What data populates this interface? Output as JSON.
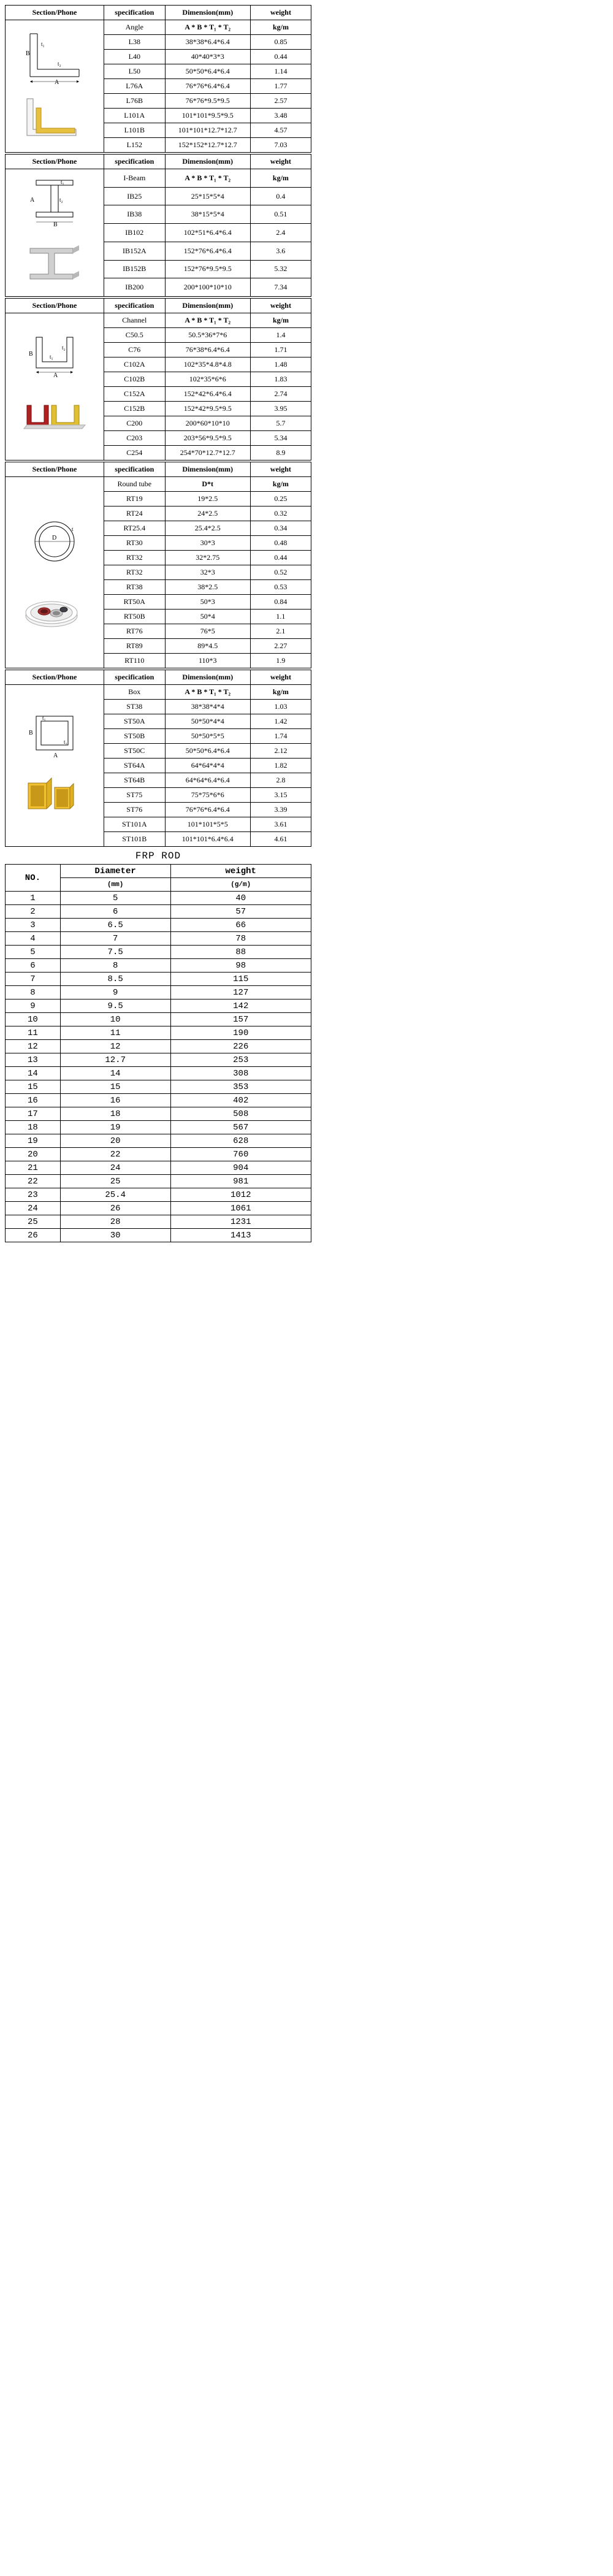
{
  "common_headers": {
    "section": "Section/Phone",
    "spec": "specification",
    "dim": "Dimension(mm)",
    "wt": "weight"
  },
  "profiles": [
    {
      "key": "angle",
      "header_spec": "Angle",
      "header_dim": "A * B * T₁ * T₂",
      "header_wt": "kg/m",
      "rows": [
        {
          "spec": "L38",
          "dim": "38*38*6.4*6.4",
          "wt": "0.85"
        },
        {
          "spec": "L40",
          "dim": "40*40*3*3",
          "wt": "0.44"
        },
        {
          "spec": "L50",
          "dim": "50*50*6.4*6.4",
          "wt": "1.14"
        },
        {
          "spec": "L76A",
          "dim": "76*76*6.4*6.4",
          "wt": "1.77"
        },
        {
          "spec": "L76B",
          "dim": "76*76*9.5*9.5",
          "wt": "2.57"
        },
        {
          "spec": "L101A",
          "dim": "101*101*9.5*9.5",
          "wt": "3.48"
        },
        {
          "spec": "L101B",
          "dim": "101*101*12.7*12.7",
          "wt": "4.57"
        },
        {
          "spec": "L152",
          "dim": "152*152*12.7*12.7",
          "wt": "7.03"
        }
      ]
    },
    {
      "key": "ibeam",
      "header_spec": "I-Beam",
      "header_dim": "A * B * T₁ * T₂",
      "header_wt": "kg/m",
      "rows": [
        {
          "spec": "IB25",
          "dim": "25*15*5*4",
          "wt": "0.4"
        },
        {
          "spec": "IB38",
          "dim": "38*15*5*4",
          "wt": "0.51"
        },
        {
          "spec": "IB102",
          "dim": "102*51*6.4*6.4",
          "wt": "2.4"
        },
        {
          "spec": "IB152A",
          "dim": "152*76*6.4*6.4",
          "wt": "3.6"
        },
        {
          "spec": "IB152B",
          "dim": "152*76*9.5*9.5",
          "wt": "5.32"
        },
        {
          "spec": "IB200",
          "dim": "200*100*10*10",
          "wt": "7.34"
        }
      ]
    },
    {
      "key": "channel",
      "header_spec": "Channel",
      "header_dim": "A * B * T₁ * T₂",
      "header_wt": "kg/m",
      "rows": [
        {
          "spec": "C50.5",
          "dim": "50.5*36*7*6",
          "wt": "1.4"
        },
        {
          "spec": "C76",
          "dim": "76*38*6.4*6.4",
          "wt": "1.71"
        },
        {
          "spec": "C102A",
          "dim": "102*35*4.8*4.8",
          "wt": "1.48"
        },
        {
          "spec": "C102B",
          "dim": "102*35*6*6",
          "wt": "1.83"
        },
        {
          "spec": "C152A",
          "dim": "152*42*6.4*6.4",
          "wt": "2.74"
        },
        {
          "spec": "C152B",
          "dim": "152*42*9.5*9.5",
          "wt": "3.95"
        },
        {
          "spec": "C200",
          "dim": "200*60*10*10",
          "wt": "5.7"
        },
        {
          "spec": "C203",
          "dim": "203*56*9.5*9.5",
          "wt": "5.34"
        },
        {
          "spec": "C254",
          "dim": "254*70*12.7*12.7",
          "wt": "8.9"
        }
      ]
    },
    {
      "key": "roundtube",
      "header_spec": "Round tube",
      "header_dim": "D*t",
      "header_wt": "kg/m",
      "rows": [
        {
          "spec": "RT19",
          "dim": "19*2.5",
          "wt": "0.25"
        },
        {
          "spec": "RT24",
          "dim": "24*2.5",
          "wt": "0.32"
        },
        {
          "spec": "RT25.4",
          "dim": "25.4*2.5",
          "wt": "0.34"
        },
        {
          "spec": "RT30",
          "dim": "30*3",
          "wt": "0.48"
        },
        {
          "spec": "RT32",
          "dim": "32*2.75",
          "wt": "0.44"
        },
        {
          "spec": "RT32",
          "dim": "32*3",
          "wt": "0.52"
        },
        {
          "spec": "RT38",
          "dim": "38*2.5",
          "wt": "0.53"
        },
        {
          "spec": "RT50A",
          "dim": "50*3",
          "wt": "0.84"
        },
        {
          "spec": "RT50B",
          "dim": "50*4",
          "wt": "1.1"
        },
        {
          "spec": "RT76",
          "dim": "76*5",
          "wt": "2.1"
        },
        {
          "spec": "RT89",
          "dim": "89*4.5",
          "wt": "2.27"
        },
        {
          "spec": "RT110",
          "dim": "110*3",
          "wt": "1.9"
        }
      ]
    },
    {
      "key": "box",
      "header_spec": "Box",
      "header_dim": "A * B * T₁ * T₂",
      "header_wt": "kg/m",
      "rows": [
        {
          "spec": "ST38",
          "dim": "38*38*4*4",
          "wt": "1.03"
        },
        {
          "spec": "ST50A",
          "dim": "50*50*4*4",
          "wt": "1.42"
        },
        {
          "spec": "ST50B",
          "dim": "50*50*5*5",
          "wt": "1.74"
        },
        {
          "spec": "ST50C",
          "dim": "50*50*6.4*6.4",
          "wt": "2.12"
        },
        {
          "spec": "ST64A",
          "dim": "64*64*4*4",
          "wt": "1.82"
        },
        {
          "spec": "ST64B",
          "dim": "64*64*6.4*6.4",
          "wt": "2.8"
        },
        {
          "spec": "ST75",
          "dim": "75*75*6*6",
          "wt": "3.15"
        },
        {
          "spec": "ST76",
          "dim": "76*76*6.4*6.4",
          "wt": "3.39"
        },
        {
          "spec": "ST101A",
          "dim": "101*101*5*5",
          "wt": "3.61"
        },
        {
          "spec": "ST101B",
          "dim": "101*101*6.4*6.4",
          "wt": "4.61"
        }
      ]
    }
  ],
  "rod": {
    "title": "FRP ROD",
    "headers": {
      "no": "NO.",
      "diam": "Diameter",
      "diam_unit": "(mm)",
      "wt": "weight",
      "wt_unit": "(g/m)"
    },
    "col_widths": {
      "no": 90,
      "diam": 180,
      "wt": 230
    },
    "rows": [
      {
        "no": "1",
        "diam": "5",
        "wt": "40"
      },
      {
        "no": "2",
        "diam": "6",
        "wt": "57"
      },
      {
        "no": "3",
        "diam": "6.5",
        "wt": "66"
      },
      {
        "no": "4",
        "diam": "7",
        "wt": "78"
      },
      {
        "no": "5",
        "diam": "7.5",
        "wt": "88"
      },
      {
        "no": "6",
        "diam": "8",
        "wt": "98"
      },
      {
        "no": "7",
        "diam": "8.5",
        "wt": "115"
      },
      {
        "no": "8",
        "diam": "9",
        "wt": "127"
      },
      {
        "no": "9",
        "diam": "9.5",
        "wt": "142"
      },
      {
        "no": "10",
        "diam": "10",
        "wt": "157"
      },
      {
        "no": "11",
        "diam": "11",
        "wt": "190"
      },
      {
        "no": "12",
        "diam": "12",
        "wt": "226"
      },
      {
        "no": "13",
        "diam": "12.7",
        "wt": "253"
      },
      {
        "no": "14",
        "diam": "14",
        "wt": "308"
      },
      {
        "no": "15",
        "diam": "15",
        "wt": "353"
      },
      {
        "no": "16",
        "diam": "16",
        "wt": "402"
      },
      {
        "no": "17",
        "diam": "18",
        "wt": "508"
      },
      {
        "no": "18",
        "diam": "19",
        "wt": "567"
      },
      {
        "no": "19",
        "diam": "20",
        "wt": "628"
      },
      {
        "no": "20",
        "diam": "22",
        "wt": "760"
      },
      {
        "no": "21",
        "diam": "24",
        "wt": "904"
      },
      {
        "no": "22",
        "diam": "25",
        "wt": "981"
      },
      {
        "no": "23",
        "diam": "25.4",
        "wt": "1012"
      },
      {
        "no": "24",
        "diam": "26",
        "wt": "1061"
      },
      {
        "no": "25",
        "diam": "28",
        "wt": "1231"
      },
      {
        "no": "26",
        "diam": "30",
        "wt": "1413"
      }
    ]
  },
  "colors": {
    "angle_yellow": "#e8c040",
    "angle_white": "#f8f8f8",
    "ibeam_gray": "#c8c8c8",
    "channel_red": "#b02020",
    "channel_yellow": "#e0c030",
    "tube_white": "#f5f5f5",
    "tube_red": "#a03030",
    "tube_gray": "#808080",
    "box_yellow": "#e0b020"
  }
}
